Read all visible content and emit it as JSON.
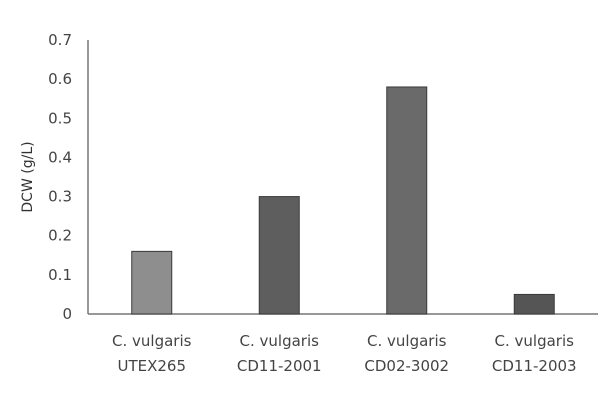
{
  "chart_data": {
    "type": "bar",
    "title": "",
    "xlabel": "",
    "ylabel": "DCW (g/L)",
    "ylim": [
      0,
      0.7
    ],
    "yticks": [
      "0",
      "0.1",
      "0.2",
      "0.3",
      "0.4",
      "0.5",
      "0.6",
      "0.7"
    ],
    "categories": [
      {
        "line1": "C. vulgaris",
        "line2": "UTEX265"
      },
      {
        "line1": "C. vulgaris",
        "line2": "CD11-2001"
      },
      {
        "line1": "C. vulgaris",
        "line2": "CD02-3002"
      },
      {
        "line1": "C. vulgaris",
        "line2": "CD11-2003"
      }
    ],
    "values": [
      0.16,
      0.3,
      0.58,
      0.05
    ],
    "bar_colors": [
      "#8e8e8e",
      "#5e5e5e",
      "#6a6a6a",
      "#555555"
    ],
    "grid": false,
    "legend": "none"
  }
}
